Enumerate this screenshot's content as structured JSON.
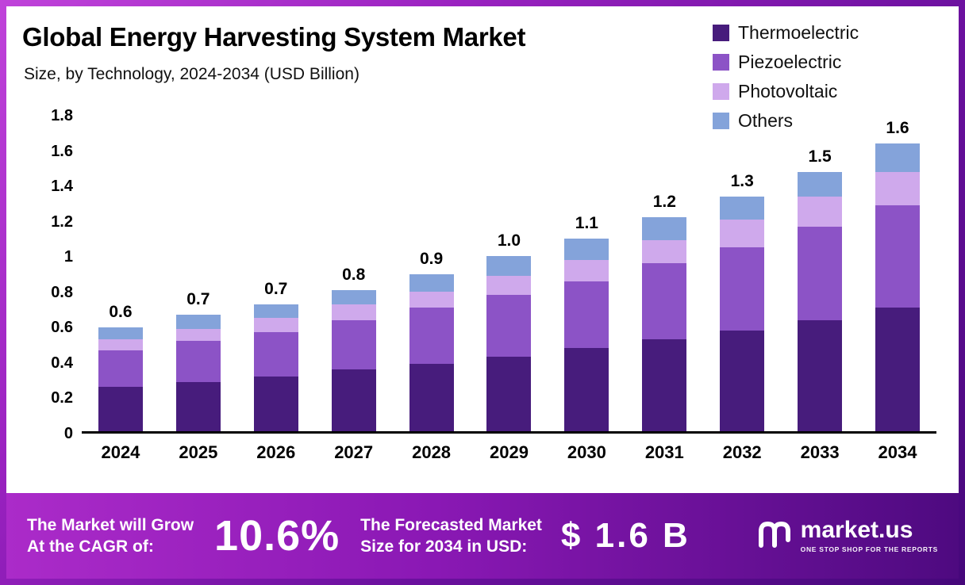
{
  "header": {
    "title": "Global Energy Harvesting System Market",
    "subtitle": "Size, by Technology, 2024-2034 (USD Billion)"
  },
  "chart_data": {
    "type": "bar",
    "stacked": true,
    "title": "Global Energy Harvesting System Market Size, by Technology, 2024-2034 (USD Billion)",
    "xlabel": "",
    "ylabel": "",
    "grid": false,
    "legend_position": "top-right",
    "ylim": [
      0,
      1.8
    ],
    "categories": [
      "2024",
      "2025",
      "2026",
      "2027",
      "2028",
      "2029",
      "2030",
      "2031",
      "2032",
      "2033",
      "2034"
    ],
    "series": [
      {
        "name": "Thermoelectric",
        "color": "#471c7c",
        "values": [
          0.25,
          0.28,
          0.31,
          0.35,
          0.38,
          0.42,
          0.47,
          0.52,
          0.57,
          0.63,
          0.7
        ]
      },
      {
        "name": "Piezoelectric",
        "color": "#8c53c6",
        "values": [
          0.21,
          0.23,
          0.25,
          0.28,
          0.32,
          0.35,
          0.38,
          0.43,
          0.47,
          0.53,
          0.58
        ]
      },
      {
        "name": "Photovoltaic",
        "color": "#cfa9ec",
        "values": [
          0.06,
          0.07,
          0.08,
          0.09,
          0.09,
          0.11,
          0.12,
          0.13,
          0.16,
          0.17,
          0.19
        ]
      },
      {
        "name": "Others",
        "color": "#84a3da",
        "values": [
          0.07,
          0.08,
          0.08,
          0.08,
          0.1,
          0.11,
          0.12,
          0.13,
          0.13,
          0.14,
          0.16
        ]
      }
    ],
    "total_labels": [
      "0.6",
      "0.7",
      "0.7",
      "0.8",
      "0.9",
      "1.0",
      "1.1",
      "1.2",
      "1.3",
      "1.5",
      "1.6"
    ],
    "yticks": [
      {
        "v": 0,
        "label": "0"
      },
      {
        "v": 0.2,
        "label": "0.2"
      },
      {
        "v": 0.4,
        "label": "0.4"
      },
      {
        "v": 0.6,
        "label": "0.6"
      },
      {
        "v": 0.8,
        "label": "0.8"
      },
      {
        "v": 1.0,
        "label": "1"
      },
      {
        "v": 1.2,
        "label": "1.2"
      },
      {
        "v": 1.4,
        "label": "1.4"
      },
      {
        "v": 1.6,
        "label": "1.6"
      },
      {
        "v": 1.8,
        "label": "1.8"
      }
    ]
  },
  "footer": {
    "grow_line1": "The Market will Grow",
    "grow_line2": "At the CAGR of:",
    "cagr": "10.6%",
    "forecast_line1": "The Forecasted Market",
    "forecast_line2": "Size for 2034 in USD:",
    "value": "$ 1.6 B",
    "brand": "market.us",
    "tagline": "ONE STOP SHOP FOR THE REPORTS"
  }
}
